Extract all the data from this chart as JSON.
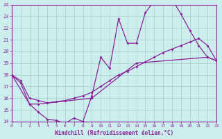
{
  "xlabel": "Windchill (Refroidissement éolien,°C)",
  "bg_color": "#cceeed",
  "grid_color": "#aacccc",
  "line_color": "#882299",
  "xlim": [
    0,
    23
  ],
  "ylim": [
    14,
    24
  ],
  "xticks": [
    0,
    1,
    2,
    3,
    4,
    5,
    6,
    7,
    8,
    9,
    10,
    11,
    12,
    13,
    14,
    15,
    16,
    17,
    18,
    19,
    20,
    21,
    22,
    23
  ],
  "yticks": [
    14,
    15,
    16,
    17,
    18,
    19,
    20,
    21,
    22,
    23,
    24
  ],
  "line1_x": [
    0,
    1,
    2,
    3,
    4,
    5,
    6,
    7,
    8,
    9,
    10,
    11,
    12,
    13,
    14,
    15,
    16,
    17,
    18,
    19,
    20,
    21,
    22,
    23
  ],
  "line1_y": [
    18.0,
    17.3,
    15.5,
    14.8,
    14.2,
    14.1,
    13.85,
    14.3,
    14.0,
    16.2,
    19.5,
    18.55,
    22.8,
    20.7,
    20.7,
    23.3,
    24.3,
    24.5,
    24.45,
    23.2,
    21.8,
    20.5,
    19.5,
    19.2
  ],
  "line2_x": [
    0,
    1,
    2,
    3,
    4,
    5,
    6,
    7,
    8,
    9,
    10,
    11,
    12,
    13,
    14,
    15,
    16,
    17,
    18,
    19,
    20,
    21,
    22,
    23
  ],
  "line2_y": [
    18.0,
    17.5,
    16.0,
    15.8,
    15.6,
    15.7,
    15.8,
    16.0,
    16.2,
    16.5,
    17.0,
    17.5,
    18.0,
    18.3,
    18.7,
    19.1,
    19.5,
    19.9,
    20.2,
    20.5,
    20.8,
    21.1,
    20.5,
    19.2
  ],
  "line3_x": [
    0,
    2,
    3,
    9,
    14,
    22,
    23
  ],
  "line3_y": [
    18.0,
    15.5,
    15.5,
    16.0,
    19.0,
    19.5,
    19.2
  ]
}
